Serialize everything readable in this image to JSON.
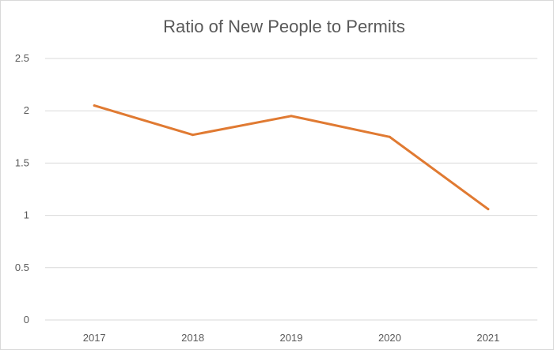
{
  "chart_data": {
    "type": "line",
    "title": "Ratio of New People to Permits",
    "xlabel": "",
    "ylabel": "",
    "categories": [
      "2017",
      "2018",
      "2019",
      "2020",
      "2021"
    ],
    "series": [
      {
        "values": [
          2.05,
          1.77,
          1.95,
          1.75,
          1.06
        ],
        "color": "#E07A32"
      }
    ],
    "ylim": [
      0,
      2.5
    ],
    "yticks": [
      "0",
      "0.5",
      "1",
      "1.5",
      "2",
      "2.5"
    ],
    "grid": true,
    "legend": "none",
    "gridline_color": "#d9d9d9",
    "text_color": "#595959"
  }
}
